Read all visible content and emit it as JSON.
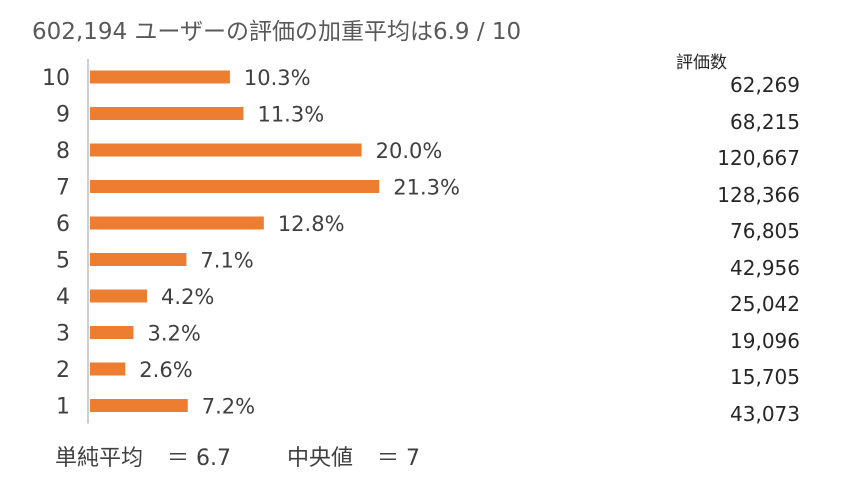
{
  "title": "602,194 ユーザーの評価の加重平均は6.9 / 10",
  "counts_header": "評価数",
  "footer": {
    "simple_mean_label": "単純平均",
    "simple_mean_value": "＝ 6.7",
    "median_label": "中央値",
    "median_value": "＝ 7"
  },
  "colors": {
    "bar": "#ED7D31",
    "axis": "#BFBFBF"
  },
  "chart_data": {
    "type": "bar",
    "orientation": "horizontal",
    "categories": [
      "10",
      "9",
      "8",
      "7",
      "6",
      "5",
      "4",
      "3",
      "2",
      "1"
    ],
    "values": [
      10.3,
      11.3,
      20.0,
      21.3,
      12.8,
      7.1,
      4.2,
      3.2,
      2.6,
      7.2
    ],
    "value_labels": [
      "10.3%",
      "11.3%",
      "20.0%",
      "21.3%",
      "12.8%",
      "7.1%",
      "4.2%",
      "3.2%",
      "2.6%",
      "7.2%"
    ],
    "counts": [
      "62,269",
      "68,215",
      "120,667",
      "128,366",
      "76,805",
      "42,956",
      "25,042",
      "19,096",
      "15,705",
      "43,073"
    ],
    "unit": "%",
    "xlim": [
      0,
      100
    ],
    "grid": false,
    "legend": "none"
  }
}
